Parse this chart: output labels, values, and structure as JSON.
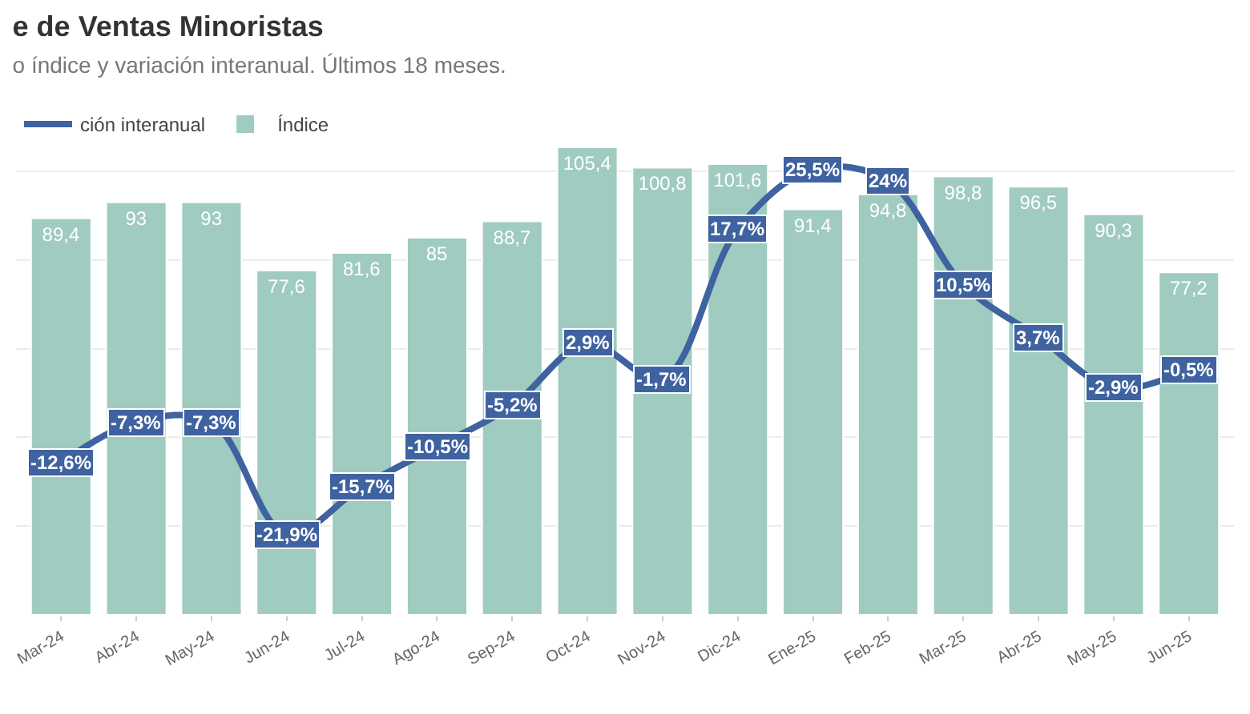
{
  "chart_data": {
    "type": "bar",
    "title": "e de Ventas Minoristas",
    "subtitle": "o índice y variación interanual. Últimos 18 meses.",
    "categories": [
      "Mar-24",
      "Abr-24",
      "May-24",
      "Jun-24",
      "Jul-24",
      "Ago-24",
      "Sep-24",
      "Oct-24",
      "Nov-24",
      "Dic-24",
      "Ene-25",
      "Feb-25",
      "Mar-25",
      "Abr-25",
      "May-25",
      "Jun-25"
    ],
    "series": [
      {
        "name": "ción interanual",
        "type": "line",
        "marker": "square",
        "axis": "y2",
        "color": "#3f62a0",
        "values": [
          -12.6,
          -7.3,
          -7.3,
          -21.9,
          -15.7,
          -10.5,
          -5.2,
          2.9,
          -1.7,
          17.7,
          25.5,
          24,
          10.5,
          3.7,
          -2.9,
          -0.5
        ],
        "value_labels": [
          "-12,6%",
          "-7,3%",
          "-7,3%",
          "-21,9%",
          "-15,7%",
          "-10,5%",
          "-5,2%",
          "2,9%",
          "-1,7%",
          "17,7%",
          "25,5%",
          "24%",
          "10,5%",
          "3,7%",
          "-2,9%",
          "-0,5%"
        ]
      },
      {
        "name": "Índice",
        "color": "#9fcbc0",
        "values": [
          89.4,
          93,
          93,
          77.6,
          81.6,
          85,
          88.7,
          105.4,
          100.8,
          101.6,
          91.4,
          94.8,
          98.8,
          96.5,
          90.3,
          77.2
        ],
        "value_labels": [
          "89,4",
          "93",
          "93",
          "77,6",
          "81,6",
          "85",
          "88,7",
          "105,4",
          "100,8",
          "101,6",
          "91,4",
          "94,8",
          "98,8",
          "96,5",
          "90,3",
          "77,2"
        ]
      }
    ],
    "grid": "y",
    "legend": "top left",
    "tick_labels": "x",
    "line_style": "solid"
  }
}
